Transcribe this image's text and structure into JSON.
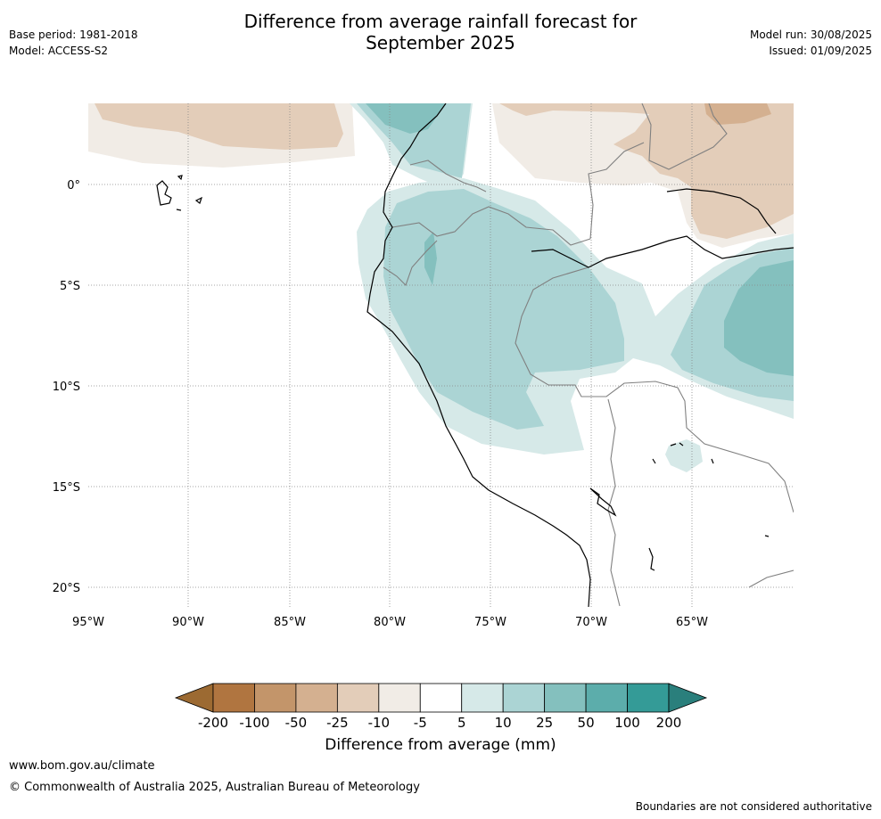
{
  "header": {
    "title_line1": "Difference from average rainfall forecast for",
    "title_line2": "September 2025",
    "base_period": "Base period: 1981-2018",
    "model": "Model: ACCESS-S2",
    "model_run": "Model run: 30/08/2025",
    "issued": "Issued: 01/09/2025"
  },
  "map": {
    "lon_labels": [
      "95°W",
      "90°W",
      "85°W",
      "80°W",
      "75°W",
      "70°W",
      "65°W"
    ],
    "lat_labels": [
      "0°",
      "5°S",
      "10°S",
      "15°S",
      "20°S"
    ]
  },
  "colorbar": {
    "label": "Difference from average (mm)",
    "ticks": [
      "-200",
      "-100",
      "-50",
      "-25",
      "-10",
      "-5",
      "5",
      "10",
      "25",
      "50",
      "100",
      "200"
    ],
    "colors": [
      "#9c6a32",
      "#b07540",
      "#c3956a",
      "#d4b090",
      "#e3cdb9",
      "#f1ece6",
      "#ffffff",
      "#d6e9e8",
      "#abd4d4",
      "#84c0be",
      "#5cadab",
      "#349b97",
      "#2a7f7c"
    ]
  },
  "footer": {
    "url": "www.bom.gov.au/climate",
    "copyright": "© Commonwealth of Australia 2025, Australian Bureau of Meteorology",
    "disclaimer": "Boundaries are not considered authoritative"
  }
}
